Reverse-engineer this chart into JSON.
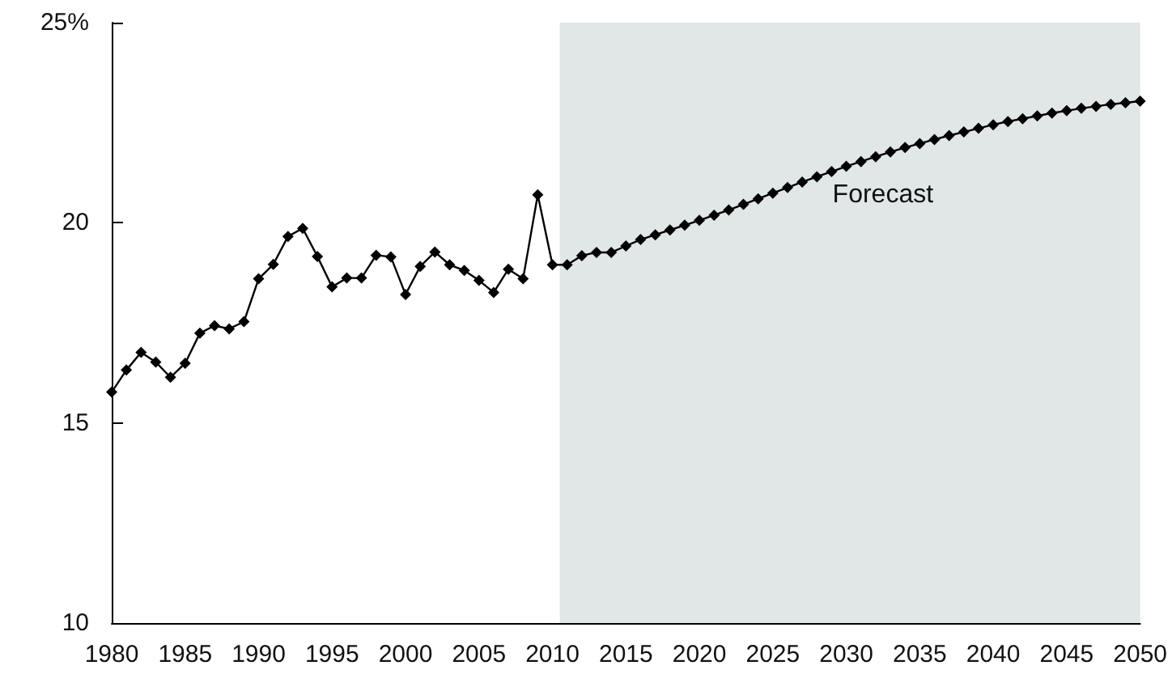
{
  "chart_data": {
    "type": "line",
    "x": [
      1980,
      1981,
      1982,
      1983,
      1984,
      1985,
      1986,
      1987,
      1988,
      1989,
      1990,
      1991,
      1992,
      1993,
      1994,
      1995,
      1996,
      1997,
      1998,
      1999,
      2000,
      2001,
      2002,
      2003,
      2004,
      2005,
      2006,
      2007,
      2008,
      2009,
      2010,
      2011,
      2012,
      2013,
      2014,
      2015,
      2016,
      2017,
      2018,
      2019,
      2020,
      2021,
      2022,
      2023,
      2024,
      2025,
      2026,
      2027,
      2028,
      2029,
      2030,
      2031,
      2032,
      2033,
      2034,
      2035,
      2036,
      2037,
      2038,
      2039,
      2040,
      2041,
      2042,
      2043,
      2044,
      2045,
      2046,
      2047,
      2048,
      2049,
      2050
    ],
    "series": [
      {
        "color": "#000000",
        "values": [
          15.77,
          16.32,
          16.76,
          16.52,
          16.14,
          16.49,
          17.24,
          17.43,
          17.35,
          17.53,
          18.6,
          18.96,
          19.66,
          19.86,
          19.16,
          18.4,
          18.62,
          18.62,
          19.19,
          19.15,
          18.21,
          18.91,
          19.27,
          18.95,
          18.81,
          18.56,
          18.26,
          18.84,
          18.6,
          20.7,
          18.95,
          18.95,
          19.18,
          19.26,
          19.26,
          19.42,
          19.58,
          19.7,
          19.82,
          19.94,
          20.06,
          20.19,
          20.32,
          20.46,
          20.6,
          20.74,
          20.88,
          21.02,
          21.15,
          21.28,
          21.41,
          21.53,
          21.65,
          21.77,
          21.88,
          21.98,
          22.08,
          22.18,
          22.27,
          22.36,
          22.45,
          22.53,
          22.6,
          22.67,
          22.74,
          22.8,
          22.86,
          22.91,
          22.96,
          23.0,
          23.04
        ]
      }
    ],
    "xlim": [
      1980,
      2050
    ],
    "xticks": [
      1980,
      1985,
      1990,
      1995,
      2000,
      2005,
      2010,
      2015,
      2020,
      2025,
      2030,
      2035,
      2040,
      2045,
      2050
    ],
    "ylim": [
      10,
      25
    ],
    "yticks": [
      10,
      15,
      20,
      {
        "value": 25,
        "label": "25%"
      }
    ],
    "bands": [
      {
        "axis": "x",
        "from": 2010.5,
        "to": 2050,
        "label": "Forecast",
        "color": "#e1e6e6"
      }
    ],
    "marker": "diamond",
    "line_style": "solid"
  }
}
